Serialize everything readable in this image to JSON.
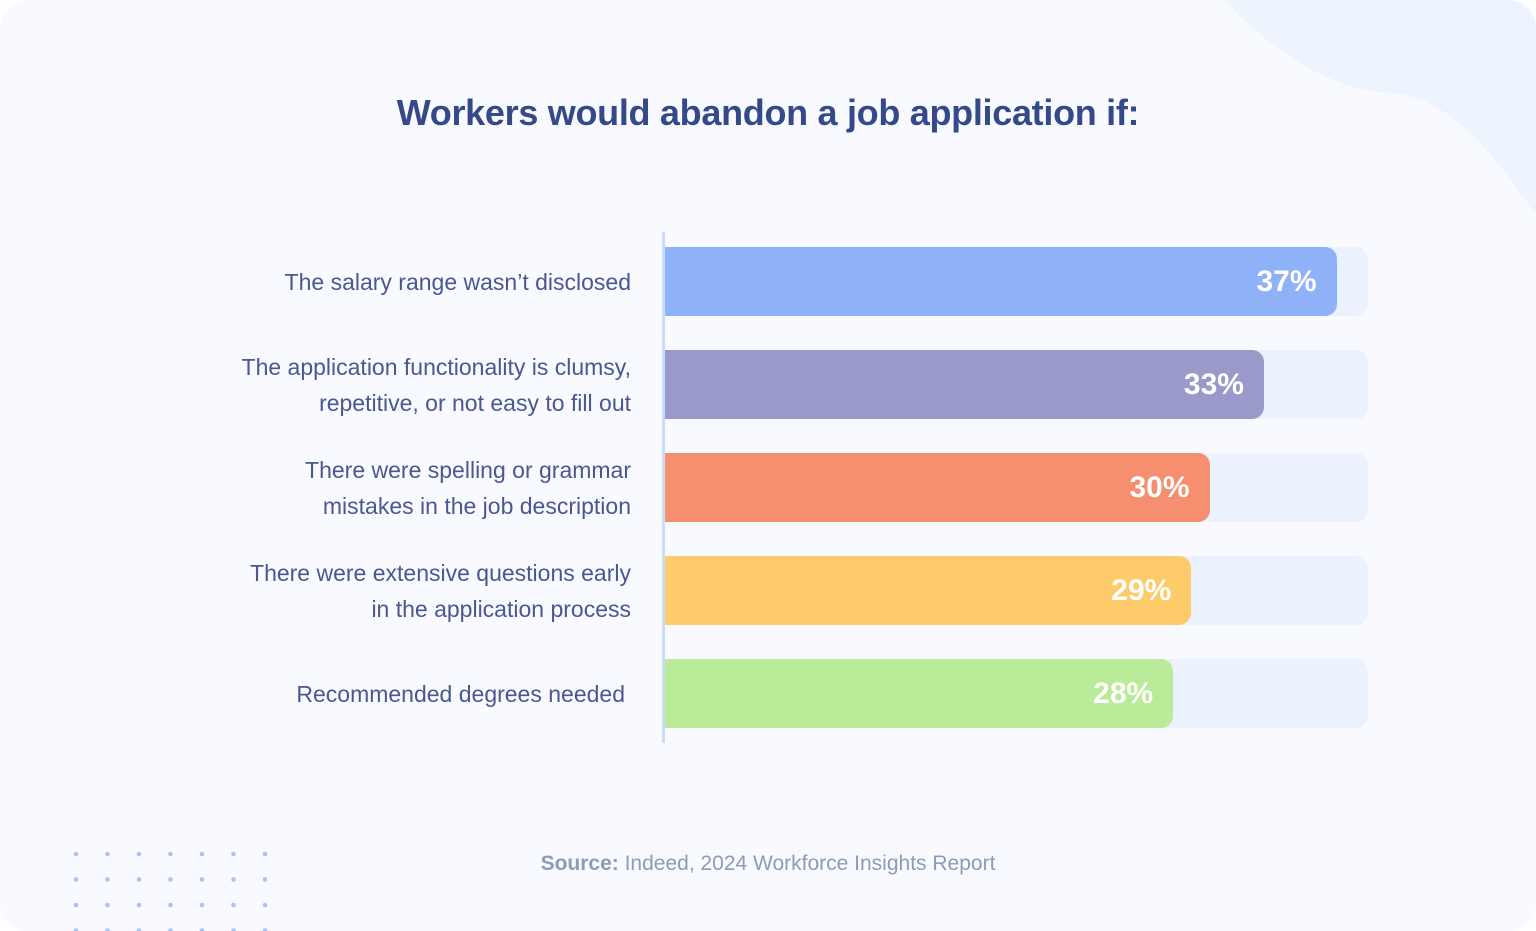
{
  "chart_data": {
    "type": "bar",
    "orientation": "horizontal",
    "title": "Workers would abandon a job application if:",
    "categories": [
      [
        "The salary range wasn’t disclosed"
      ],
      [
        "The application functionality is clumsy,",
        "repetitive, or not easy to fill out"
      ],
      [
        "There were spelling or grammar",
        "mistakes in the job description"
      ],
      [
        "There were extensive questions early",
        "in the application process"
      ],
      [
        "Recommended degrees needed"
      ]
    ],
    "values": [
      37,
      33,
      30,
      29,
      28
    ],
    "data_labels": [
      "37%",
      "33%",
      "30%",
      "29%",
      "28%"
    ],
    "unit": "%",
    "colors": [
      "#8fb1f7",
      "#9a9aca",
      "#f58f6f",
      "#fecb6b",
      "#b9eb98"
    ],
    "track_color": "#ebf2fe",
    "grid": false,
    "legend": "none"
  },
  "source": {
    "prefix": "Source:",
    "text": " Indeed, 2024 Workforce Insights Report"
  }
}
